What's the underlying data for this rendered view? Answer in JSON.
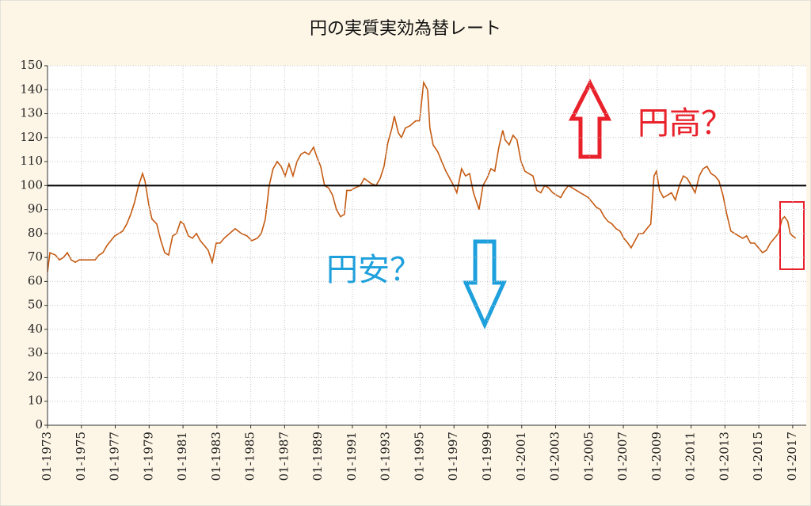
{
  "chart_data": {
    "type": "line",
    "title": "円の実質実効為替レート",
    "color": "#c55a11",
    "grid": true,
    "reference_line": 100,
    "xlim": [
      1973,
      2017.8
    ],
    "xticks": [
      {
        "value": 1973,
        "label": "01-1973"
      },
      {
        "value": 1975,
        "label": "01-1975"
      },
      {
        "value": 1977,
        "label": "01-1977"
      },
      {
        "value": 1979,
        "label": "01-1979"
      },
      {
        "value": 1981,
        "label": "01-1981"
      },
      {
        "value": 1983,
        "label": "01-1983"
      },
      {
        "value": 1985,
        "label": "01-1985"
      },
      {
        "value": 1987,
        "label": "01-1987"
      },
      {
        "value": 1989,
        "label": "01-1989"
      },
      {
        "value": 1991,
        "label": "01-1991"
      },
      {
        "value": 1993,
        "label": "01-1993"
      },
      {
        "value": 1995,
        "label": "01-1995"
      },
      {
        "value": 1997,
        "label": "01-1997"
      },
      {
        "value": 1999,
        "label": "01-1999"
      },
      {
        "value": 2001,
        "label": "01-2001"
      },
      {
        "value": 2003,
        "label": "01-2003"
      },
      {
        "value": 2005,
        "label": "01-2005"
      },
      {
        "value": 2007,
        "label": "01-2007"
      },
      {
        "value": 2009,
        "label": "01-2009"
      },
      {
        "value": 2011,
        "label": "01-2011"
      },
      {
        "value": 2013,
        "label": "01-2013"
      },
      {
        "value": 2015,
        "label": "01-2015"
      },
      {
        "value": 2017,
        "label": "01-2017"
      }
    ],
    "ylim": [
      0,
      150
    ],
    "yticks": [
      0,
      10,
      20,
      30,
      40,
      50,
      60,
      70,
      80,
      90,
      100,
      110,
      120,
      130,
      140,
      150
    ],
    "x": [
      1973.0,
      1973.14,
      1973.47,
      1973.7,
      1973.94,
      1974.17,
      1974.4,
      1974.64,
      1974.87,
      1975.34,
      1975.81,
      1976.04,
      1976.27,
      1976.51,
      1976.74,
      1976.97,
      1977.21,
      1977.44,
      1977.68,
      1977.91,
      1978.14,
      1978.38,
      1978.61,
      1978.75,
      1978.98,
      1979.17,
      1979.45,
      1979.69,
      1979.92,
      1980.15,
      1980.39,
      1980.62,
      1980.85,
      1981.04,
      1981.32,
      1981.56,
      1981.79,
      1982.02,
      1982.26,
      1982.49,
      1982.72,
      1982.96,
      1983.19,
      1983.43,
      1983.75,
      1984.08,
      1984.45,
      1984.78,
      1985.06,
      1985.39,
      1985.62,
      1985.86,
      1986.09,
      1986.32,
      1986.56,
      1986.79,
      1987.03,
      1987.26,
      1987.49,
      1987.73,
      1987.96,
      1988.19,
      1988.43,
      1988.71,
      1988.9,
      1989.13,
      1989.36,
      1989.6,
      1989.83,
      1990.06,
      1990.3,
      1990.53,
      1990.67,
      1990.91,
      1991.14,
      1991.47,
      1991.7,
      1992.07,
      1992.4,
      1992.64,
      1992.87,
      1993.1,
      1993.34,
      1993.48,
      1993.71,
      1993.9,
      1994.13,
      1994.41,
      1994.74,
      1994.97,
      1995.21,
      1995.44,
      1995.58,
      1995.77,
      1996.05,
      1996.28,
      1996.52,
      1996.75,
      1996.98,
      1997.17,
      1997.31,
      1997.45,
      1997.68,
      1997.92,
      1998.15,
      1998.39,
      1998.48,
      1998.71,
      1998.95,
      1999.18,
      1999.41,
      1999.65,
      1999.88,
      2000.02,
      2000.26,
      2000.49,
      2000.72,
      2000.96,
      2001.19,
      2001.42,
      2001.66,
      2001.89,
      2002.13,
      2002.36,
      2002.59,
      2002.83,
      2003.06,
      2003.3,
      2003.53,
      2003.76,
      2004.0,
      2004.23,
      2004.46,
      2004.7,
      2004.93,
      2005.17,
      2005.4,
      2005.63,
      2005.87,
      2006.1,
      2006.33,
      2006.57,
      2006.8,
      2007.03,
      2007.27,
      2007.46,
      2007.69,
      2007.92,
      2008.16,
      2008.39,
      2008.62,
      2008.81,
      2008.95,
      2009.14,
      2009.37,
      2009.61,
      2009.84,
      2010.07,
      2010.31,
      2010.54,
      2010.77,
      2011.01,
      2011.24,
      2011.48,
      2011.71,
      2011.94,
      2012.18,
      2012.41,
      2012.64,
      2012.88,
      2013.11,
      2013.35,
      2013.58,
      2013.81,
      2014.05,
      2014.28,
      2014.51,
      2014.75,
      2014.98,
      2015.22,
      2015.45,
      2015.68,
      2015.92,
      2016.15,
      2016.38,
      2016.52,
      2016.71,
      2016.85,
      2016.99,
      2017.18
    ],
    "values": [
      64,
      72,
      71,
      69,
      70,
      72,
      69,
      68,
      69,
      69,
      69,
      71,
      72,
      75,
      77,
      79,
      80,
      81,
      84,
      88,
      93,
      100,
      105,
      102,
      92,
      86,
      84,
      77,
      72,
      71,
      79,
      80,
      85,
      84,
      79,
      78,
      80,
      77,
      75,
      73,
      68,
      76,
      76,
      78,
      80,
      82,
      80,
      79,
      77,
      78,
      80,
      86,
      100,
      107,
      110,
      108,
      104,
      109,
      104,
      110,
      113,
      114,
      113,
      116,
      112,
      108,
      100,
      99,
      96,
      90,
      87,
      88,
      98,
      98,
      99,
      100,
      103,
      101,
      100,
      103,
      108,
      118,
      124,
      129,
      122,
      120,
      124,
      125,
      127,
      127,
      143,
      140,
      124,
      117,
      114,
      110,
      106,
      103,
      100,
      97,
      102,
      107,
      104,
      105,
      97,
      92,
      90,
      100,
      103,
      107,
      106,
      116,
      123,
      119,
      117,
      121,
      119,
      110,
      106,
      105,
      104,
      98,
      97,
      100,
      99,
      97,
      96,
      95,
      98,
      100,
      99,
      98,
      97,
      96,
      95,
      93,
      91,
      90,
      87,
      85,
      84,
      82,
      81,
      78,
      76,
      74,
      77,
      80,
      80,
      82,
      84,
      104,
      106,
      98,
      95,
      96,
      97,
      94,
      100,
      104,
      103,
      100,
      97,
      104,
      107,
      108,
      105,
      104,
      102,
      96,
      88,
      81,
      80,
      79,
      78,
      79,
      76,
      76,
      74,
      72,
      73,
      76,
      78,
      80,
      86,
      87,
      85,
      80,
      79,
      78
    ],
    "annotations": [
      {
        "text": "円高？",
        "color": "#e8212b"
      },
      {
        "text": "円安？",
        "color": "#1ea0dc"
      }
    ]
  }
}
